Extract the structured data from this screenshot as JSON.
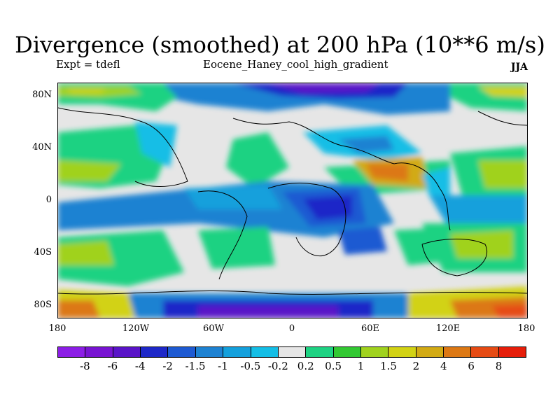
{
  "title": "Divergence (smoothed) at 200 hPa (10**6 m/s)",
  "subtitle_left": "Expt = tdefl",
  "subtitle_center": "Eocene_Haney_cool_high_gradient",
  "subtitle_right": "JJA",
  "lat_labels": [
    "80N",
    "40N",
    "0",
    "40S",
    "80S"
  ],
  "lon_labels": [
    "180",
    "120W",
    "60W",
    "0",
    "60E",
    "120E",
    "180"
  ],
  "colorbar": {
    "colors": [
      "#8c1ee6",
      "#7814d2",
      "#5a14c8",
      "#1e28c8",
      "#1e5ad2",
      "#1e82d2",
      "#14a0dc",
      "#14bee6",
      "#e6e6e6",
      "#1ed282",
      "#32c832",
      "#a0d21e",
      "#d2d214",
      "#d2aa14",
      "#dc7814",
      "#e64b14",
      "#e61e0a"
    ],
    "labels": [
      "-8",
      "-6",
      "-4",
      "-2",
      "-1.5",
      "-1",
      "-0.5",
      "-0.2",
      "0.2",
      "0.5",
      "1",
      "1.5",
      "2",
      "4",
      "6",
      "8"
    ]
  }
}
